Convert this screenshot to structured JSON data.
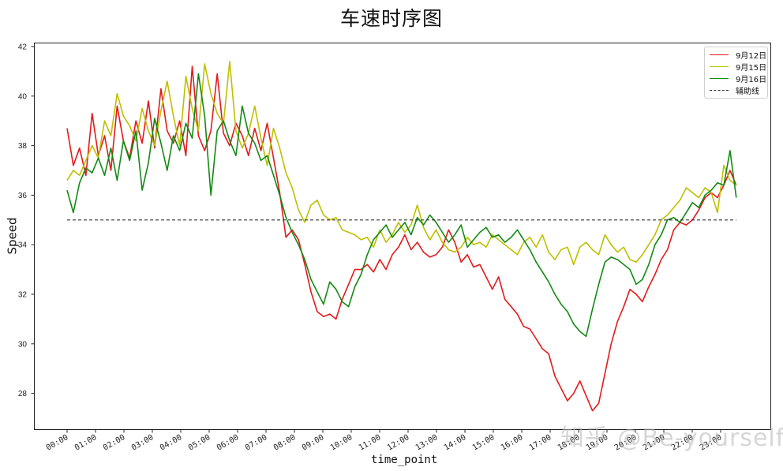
{
  "chart_data": {
    "type": "line",
    "title": "车速时序图",
    "xlabel": "time_point",
    "ylabel": "Speed",
    "ylim": [
      26.5,
      42.2
    ],
    "yticks": [
      28,
      30,
      32,
      34,
      36,
      38,
      40,
      42
    ],
    "xticks": [
      "00:00",
      "01:00",
      "02:00",
      "03:00",
      "04:00",
      "05:00",
      "06:00",
      "07:00",
      "08:00",
      "09:00",
      "10:00",
      "11:00",
      "12:00",
      "13:00",
      "14:00",
      "15:00",
      "16:00",
      "17:00",
      "18:00",
      "19:00",
      "20:00",
      "21:00",
      "22:00",
      "23:00"
    ],
    "grid": false,
    "legend_position": "upper right",
    "sample_interval_minutes": 20,
    "series": [
      {
        "name": "9月12日",
        "color": "#e31a1c",
        "style": "solid",
        "values": [
          38.7,
          37.2,
          37.9,
          36.8,
          39.3,
          37.6,
          38.4,
          37.0,
          39.6,
          38.2,
          37.5,
          39.0,
          38.1,
          39.8,
          37.9,
          40.3,
          38.6,
          38.1,
          39.0,
          37.6,
          41.2,
          38.4,
          37.8,
          38.6,
          40.9,
          38.5,
          38.0,
          38.9,
          38.4,
          37.6,
          38.7,
          37.8,
          38.9,
          37.5,
          36.1,
          34.3,
          34.6,
          34.2,
          33.2,
          32.1,
          31.3,
          31.1,
          31.2,
          31.0,
          31.8,
          32.4,
          33.0,
          33.0,
          33.2,
          32.9,
          33.4,
          33.0,
          33.6,
          33.9,
          34.4,
          33.8,
          34.1,
          33.7,
          33.5,
          33.6,
          33.9,
          34.6,
          34.1,
          33.3,
          33.6,
          33.1,
          33.2,
          32.7,
          32.2,
          32.7,
          31.8,
          31.5,
          31.2,
          30.7,
          30.6,
          30.2,
          29.8,
          29.6,
          28.7,
          28.2,
          27.7,
          28.0,
          28.5,
          27.9,
          27.3,
          27.6,
          28.8,
          30.0,
          30.9,
          31.5,
          32.2,
          32.0,
          31.7,
          32.3,
          32.8,
          33.4,
          33.8,
          34.6,
          34.9,
          34.8,
          35.0,
          35.4,
          35.9,
          36.1,
          35.9,
          36.4,
          37.0,
          36.4
        ]
      },
      {
        "name": "9月15日",
        "color": "#bfbf00",
        "style": "solid",
        "values": [
          36.6,
          37.0,
          36.8,
          37.4,
          38.0,
          37.5,
          39.0,
          38.4,
          40.1,
          39.2,
          38.8,
          38.2,
          39.5,
          38.6,
          38.0,
          39.4,
          40.6,
          39.2,
          38.0,
          40.8,
          39.5,
          38.6,
          41.3,
          40.1,
          39.3,
          38.9,
          41.4,
          38.6,
          37.9,
          38.5,
          39.6,
          38.3,
          37.2,
          38.7,
          37.9,
          36.9,
          36.3,
          35.4,
          34.9,
          35.6,
          35.8,
          35.2,
          35.0,
          35.1,
          34.6,
          34.5,
          34.4,
          34.2,
          34.3,
          33.9,
          34.6,
          34.1,
          34.4,
          34.9,
          34.5,
          34.8,
          35.6,
          34.7,
          34.2,
          34.6,
          34.1,
          33.8,
          33.7,
          33.9,
          34.3,
          34.0,
          34.1,
          33.9,
          34.4,
          34.2,
          34.0,
          33.8,
          33.6,
          34.1,
          34.3,
          33.9,
          34.4,
          33.7,
          33.4,
          33.8,
          33.9,
          33.2,
          33.9,
          34.1,
          33.8,
          33.6,
          34.4,
          34.0,
          33.7,
          33.9,
          33.4,
          33.3,
          33.6,
          34.0,
          34.4,
          35.0,
          35.2,
          35.5,
          35.8,
          36.3,
          36.1,
          35.9,
          36.3,
          36.1,
          35.3,
          37.2,
          36.6,
          36.4
        ]
      },
      {
        "name": "9月16日",
        "color": "#138a13",
        "style": "solid",
        "values": [
          36.2,
          35.3,
          36.5,
          37.1,
          36.9,
          37.5,
          36.8,
          37.9,
          36.6,
          38.2,
          37.4,
          38.6,
          36.2,
          37.3,
          39.1,
          38.1,
          37.0,
          38.4,
          37.8,
          38.9,
          38.3,
          40.9,
          39.2,
          36.0,
          38.6,
          39.0,
          38.2,
          37.6,
          39.6,
          38.5,
          38.1,
          37.4,
          37.6,
          36.8,
          36.0,
          35.1,
          34.5,
          34.0,
          33.4,
          32.6,
          32.1,
          31.6,
          32.5,
          32.2,
          31.7,
          31.5,
          32.3,
          32.8,
          33.6,
          34.2,
          34.5,
          34.8,
          34.3,
          34.6,
          34.9,
          34.4,
          35.1,
          34.8,
          35.2,
          34.9,
          34.5,
          34.1,
          34.4,
          34.8,
          33.9,
          34.2,
          34.5,
          34.7,
          34.3,
          34.4,
          34.1,
          34.3,
          34.6,
          34.2,
          33.8,
          33.3,
          32.9,
          32.5,
          32.0,
          31.6,
          31.3,
          30.8,
          30.5,
          30.3,
          31.4,
          32.4,
          33.3,
          33.5,
          33.4,
          33.2,
          33.0,
          32.4,
          32.6,
          33.2,
          34.0,
          34.4,
          35.0,
          35.1,
          34.9,
          35.3,
          35.7,
          35.5,
          36.0,
          36.2,
          36.5,
          36.4,
          37.8,
          35.9
        ]
      },
      {
        "name": "辅助线",
        "color": "#333333",
        "style": "dashed",
        "values": [
          35,
          35
        ]
      }
    ]
  },
  "legend": {
    "items": [
      {
        "label": "9月12日",
        "color": "#e31a1c",
        "style": "solid"
      },
      {
        "label": "9月15日",
        "color": "#bfbf00",
        "style": "solid"
      },
      {
        "label": "9月16日",
        "color": "#138a13",
        "style": "solid"
      },
      {
        "label": "辅助线",
        "color": "#333333",
        "style": "dashed"
      }
    ]
  },
  "watermark": "知乎 @Be-yourself"
}
